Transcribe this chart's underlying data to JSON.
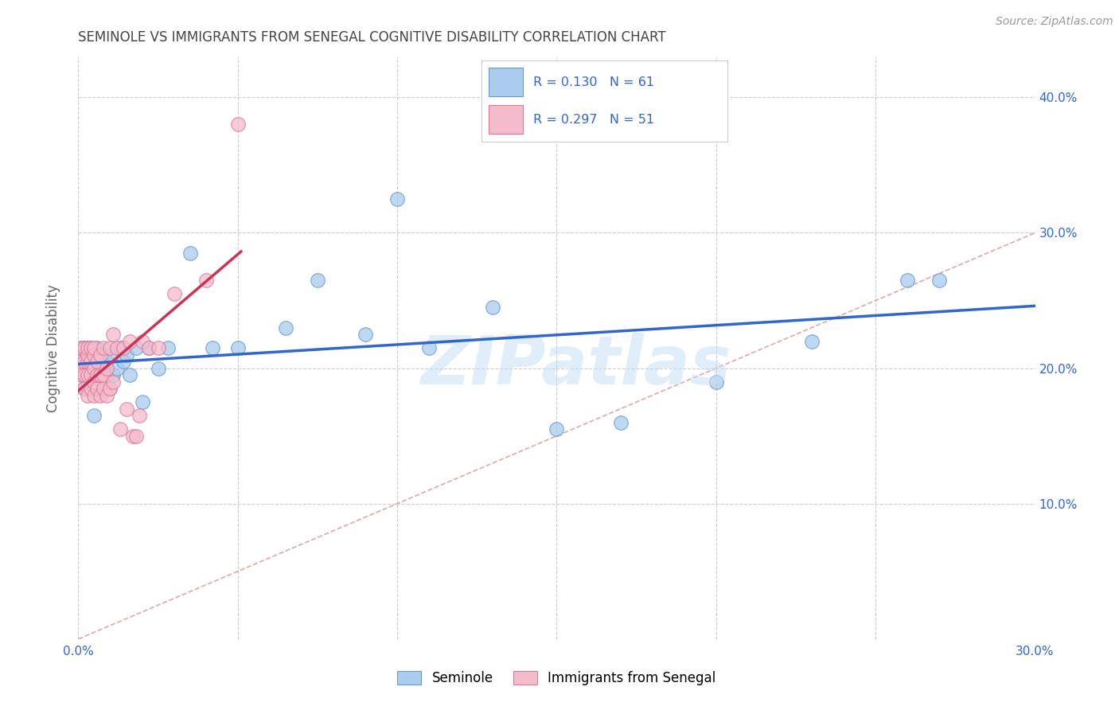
{
  "title": "SEMINOLE VS IMMIGRANTS FROM SENEGAL COGNITIVE DISABILITY CORRELATION CHART",
  "source": "Source: ZipAtlas.com",
  "ylabel": "Cognitive Disability",
  "xlim": [
    0.0,
    0.3
  ],
  "ylim": [
    0.0,
    0.43
  ],
  "xticks": [
    0.0,
    0.05,
    0.1,
    0.15,
    0.2,
    0.25,
    0.3
  ],
  "yticks": [
    0.0,
    0.1,
    0.2,
    0.3,
    0.4
  ],
  "watermark": "ZIPatlas",
  "seminole_face": "#aaccee",
  "senegal_face": "#f5bccb",
  "seminole_edge": "#6699cc",
  "senegal_edge": "#dd7799",
  "line_blue": "#3366cc",
  "line_pink": "#cc3355",
  "diag_color": "#ddaaaa",
  "grid_color": "#cccccc",
  "title_color": "#444444",
  "axis_color": "#3366cc",
  "R_sem": "0.130",
  "N_sem": "61",
  "R_sen": "0.297",
  "N_sen": "51",
  "label_sem": "Seminole",
  "label_sen": "Immigrants from Senegal",
  "seminole_x": [
    0.001,
    0.001,
    0.001,
    0.001,
    0.002,
    0.002,
    0.002,
    0.002,
    0.002,
    0.003,
    0.003,
    0.003,
    0.003,
    0.003,
    0.004,
    0.004,
    0.004,
    0.004,
    0.005,
    0.005,
    0.005,
    0.005,
    0.006,
    0.006,
    0.006,
    0.007,
    0.007,
    0.007,
    0.008,
    0.008,
    0.009,
    0.009,
    0.01,
    0.01,
    0.011,
    0.012,
    0.013,
    0.014,
    0.015,
    0.016,
    0.018,
    0.02,
    0.022,
    0.025,
    0.028,
    0.035,
    0.042,
    0.05,
    0.065,
    0.075,
    0.09,
    0.1,
    0.11,
    0.13,
    0.15,
    0.17,
    0.2,
    0.23,
    0.26,
    0.27,
    0.005
  ],
  "seminole_y": [
    0.195,
    0.21,
    0.2,
    0.215,
    0.185,
    0.205,
    0.195,
    0.215,
    0.2,
    0.19,
    0.205,
    0.2,
    0.215,
    0.21,
    0.185,
    0.2,
    0.21,
    0.215,
    0.19,
    0.205,
    0.195,
    0.21,
    0.185,
    0.2,
    0.215,
    0.19,
    0.205,
    0.195,
    0.2,
    0.21,
    0.195,
    0.205,
    0.185,
    0.21,
    0.195,
    0.2,
    0.215,
    0.205,
    0.21,
    0.195,
    0.215,
    0.175,
    0.215,
    0.2,
    0.215,
    0.285,
    0.215,
    0.215,
    0.23,
    0.265,
    0.225,
    0.325,
    0.215,
    0.245,
    0.155,
    0.16,
    0.19,
    0.22,
    0.265,
    0.265,
    0.165
  ],
  "senegal_x": [
    0.001,
    0.001,
    0.001,
    0.001,
    0.002,
    0.002,
    0.002,
    0.002,
    0.003,
    0.003,
    0.003,
    0.003,
    0.003,
    0.004,
    0.004,
    0.004,
    0.004,
    0.005,
    0.005,
    0.005,
    0.005,
    0.005,
    0.006,
    0.006,
    0.006,
    0.007,
    0.007,
    0.007,
    0.008,
    0.008,
    0.008,
    0.009,
    0.009,
    0.01,
    0.01,
    0.011,
    0.011,
    0.012,
    0.013,
    0.014,
    0.015,
    0.016,
    0.017,
    0.018,
    0.019,
    0.02,
    0.022,
    0.025,
    0.03,
    0.04,
    0.05
  ],
  "senegal_y": [
    0.195,
    0.2,
    0.205,
    0.215,
    0.185,
    0.195,
    0.205,
    0.215,
    0.18,
    0.195,
    0.205,
    0.21,
    0.215,
    0.185,
    0.195,
    0.205,
    0.215,
    0.18,
    0.19,
    0.2,
    0.21,
    0.215,
    0.185,
    0.195,
    0.205,
    0.18,
    0.195,
    0.21,
    0.185,
    0.195,
    0.215,
    0.18,
    0.2,
    0.185,
    0.215,
    0.19,
    0.225,
    0.215,
    0.155,
    0.215,
    0.17,
    0.22,
    0.15,
    0.15,
    0.165,
    0.22,
    0.215,
    0.215,
    0.255,
    0.265,
    0.38
  ]
}
